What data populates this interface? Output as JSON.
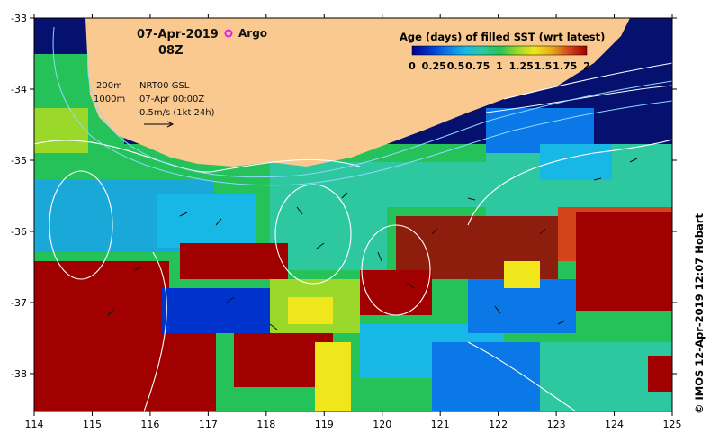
{
  "map": {
    "date": "07-Apr-2019",
    "hour": "08Z",
    "argo_label": "Argo",
    "isobath_200": "200m",
    "isobath_1000": "1000m",
    "product": "NRT00 GSL",
    "product_time": "07-Apr 00:00Z",
    "vector_scale": "0.5m/s (1kt 24h)",
    "credit": "© IMOS 12-Apr-2019 12:07 Hobart",
    "lon_ticks": [
      "114",
      "115",
      "116",
      "117",
      "118",
      "119",
      "120",
      "121",
      "122",
      "123",
      "124",
      "125"
    ],
    "lat_ticks": [
      "-33",
      "-34",
      "-35",
      "-36",
      "-37",
      "-38"
    ]
  },
  "colorbar": {
    "title": "Age (days) of filled SST (wrt latest)",
    "ticks": [
      "0",
      "0.25",
      "0.5",
      "0.75",
      "1",
      "1.25",
      "1.5",
      "1.75",
      "2"
    ],
    "range": [
      0,
      2
    ],
    "colors": [
      "#00008f",
      "#0033cc",
      "#0a78e6",
      "#17b7e6",
      "#2ec8a0",
      "#25c25a",
      "#9ad82a",
      "#f0e61c",
      "#e8a81c",
      "#d4441a",
      "#a00000"
    ]
  },
  "colors": {
    "land": "#f9c98f",
    "deep_ocean": "#06106e",
    "argo": "#e81ce8"
  }
}
